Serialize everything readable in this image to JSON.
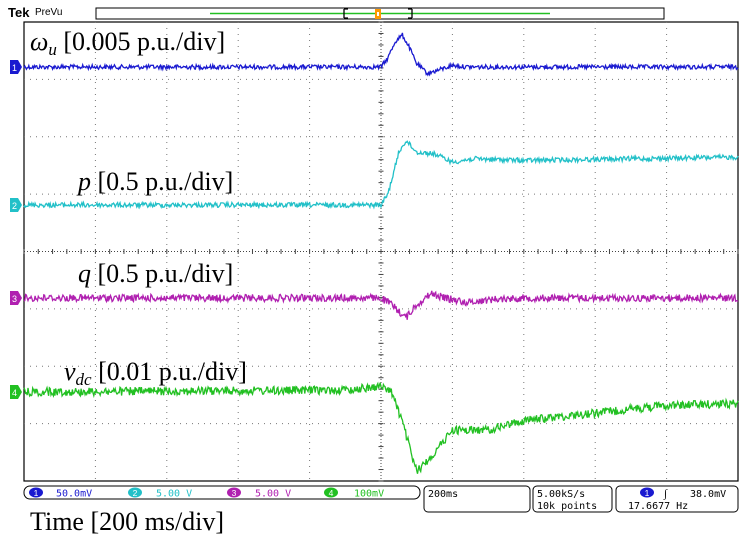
{
  "header": {
    "brand": "Tek",
    "mode": "PreVu"
  },
  "trace_labels": [
    {
      "symbol": "ω",
      "sub": "u",
      "scale": " [0.005 p.u./div]"
    },
    {
      "symbol": "p",
      "sub": "",
      "scale": " [0.5 p.u./div]"
    },
    {
      "symbol": "q",
      "sub": "",
      "scale": " [0.5 p.u./div]"
    },
    {
      "symbol": "v",
      "sub": "dc",
      "scale": " [0.01 p.u./div]"
    }
  ],
  "channel_markers": [
    "1",
    "2",
    "3",
    "4"
  ],
  "status_bar": {
    "channels": [
      {
        "num": "1",
        "scale": "50.0mV"
      },
      {
        "num": "2",
        "scale": "5.00 V"
      },
      {
        "num": "3",
        "scale": "5.00 V"
      },
      {
        "num": "4",
        "scale": "100mV"
      }
    ],
    "timebase": "200ms",
    "sample_rate": "5.00kS/s",
    "record_length": "10k points",
    "trigger_channel": "1",
    "trigger_slope": "∫",
    "trigger_level": "38.0mV",
    "frequency": "17.6677 Hz"
  },
  "time_label": "Time [200 ms/div]",
  "colors": {
    "ch1": "#1a1ad0",
    "ch2": "#22c0c8",
    "ch3": "#b020b0",
    "ch4": "#22c022",
    "grid": "#555555"
  },
  "chart_data": {
    "type": "line",
    "xlabel": "Time [200 ms/div]",
    "xlim": [
      0,
      10
    ],
    "x_unit": "div",
    "grid": true,
    "trigger_div": 5,
    "series": [
      {
        "name": "ωu [0.005 p.u./div]",
        "channel": "1",
        "x": [
          0,
          5.0,
          5.1,
          5.2,
          5.3,
          5.4,
          5.5,
          5.65,
          5.8,
          6.0,
          6.2,
          7,
          10
        ],
        "y": [
          0,
          0,
          0.3,
          0.8,
          1.0,
          0.6,
          0.1,
          -0.2,
          -0.1,
          0.05,
          0,
          0,
          0
        ]
      },
      {
        "name": "p [0.5 p.u./div]",
        "channel": "2",
        "x": [
          0,
          5.0,
          5.1,
          5.25,
          5.35,
          5.5,
          5.75,
          6.0,
          6.3,
          7,
          10
        ],
        "y": [
          0,
          0,
          0.35,
          1.6,
          1.95,
          1.6,
          1.55,
          1.3,
          1.4,
          1.35,
          1.45
        ],
        "note_ylim_rel": "ref"
      },
      {
        "name": "q [0.5 p.u./div]",
        "channel": "3",
        "x": [
          0,
          5.0,
          5.15,
          5.35,
          5.5,
          5.7,
          5.9,
          6.2,
          6.6,
          7,
          10
        ],
        "y": [
          0,
          0,
          -0.3,
          -0.9,
          -0.3,
          0.2,
          0.0,
          -0.2,
          -0.05,
          0,
          0
        ]
      },
      {
        "name": "vdc [0.01 p.u./div]",
        "channel": "4",
        "x": [
          0,
          4.5,
          5.0,
          5.15,
          5.3,
          5.5,
          5.75,
          6.0,
          6.5,
          7.0,
          8.0,
          9.0,
          10
        ],
        "y": [
          0,
          0.05,
          0.15,
          0.0,
          -0.8,
          -2.1,
          -1.6,
          -1.0,
          -1.0,
          -0.75,
          -0.55,
          -0.35,
          -0.3
        ]
      }
    ]
  }
}
